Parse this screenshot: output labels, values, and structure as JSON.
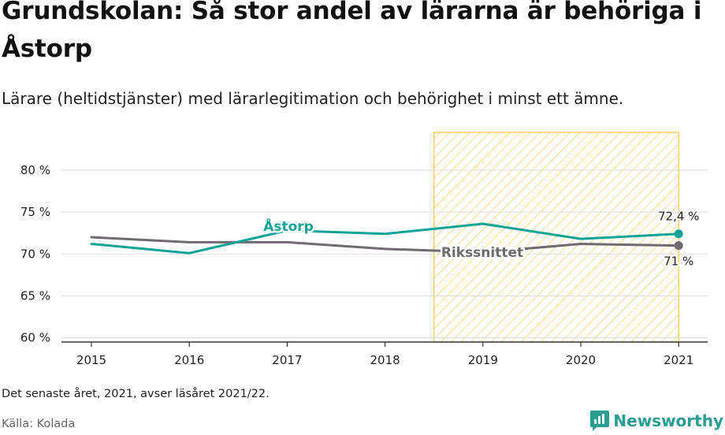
{
  "title": "Grundskolan: Så stor andel av lärarna är behöriga i Åstorp",
  "subtitle": "Lärare (heltidstjänster) med lärarlegitimation och behörighet i minst ett ämne.",
  "footnote": "Det senaste året, 2021, avser läsåret 2021/22.",
  "source": "Källa: Kolada",
  "brand": "Newsworthy",
  "colors": {
    "astorp": "#13a396",
    "riksnitt": "#6e6a70",
    "highlight": "#f5c64a",
    "grid": "#dddddd"
  },
  "chart_data": {
    "type": "line",
    "x": [
      2015,
      2016,
      2017,
      2018,
      2019,
      2020,
      2021
    ],
    "ylim": [
      59.5,
      84.5
    ],
    "yticks": [
      60,
      65,
      70,
      75,
      80
    ],
    "ytick_labels": [
      "60 %",
      "65 %",
      "70 %",
      "75 %",
      "80 %"
    ],
    "xtick_labels": [
      "2015",
      "2016",
      "2017",
      "2018",
      "2019",
      "2020",
      "2021"
    ],
    "highlight_range": [
      2018.5,
      2021
    ],
    "series": [
      {
        "name": "Åstorp",
        "color": "#13a396",
        "values": [
          71.2,
          70.1,
          72.8,
          72.4,
          73.6,
          71.8,
          72.4
        ],
        "end_label": "72,4 %"
      },
      {
        "name": "Rikssnittet",
        "color": "#6e6a70",
        "values": [
          72.0,
          71.4,
          71.4,
          70.6,
          70.2,
          71.2,
          71.0
        ],
        "end_label": "71 %"
      }
    ]
  }
}
